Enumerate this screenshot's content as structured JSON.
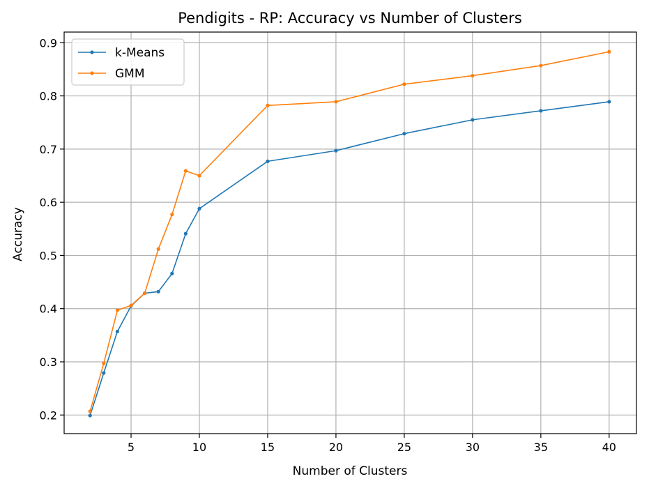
{
  "chart_data": {
    "type": "line",
    "title": "Pendigits - RP: Accuracy vs Number of Clusters",
    "xlabel": "Number of Clusters",
    "ylabel": "Accuracy",
    "xlim": [
      0.1,
      42.0
    ],
    "ylim": [
      0.165,
      0.92
    ],
    "xticks": [
      5,
      10,
      15,
      20,
      25,
      30,
      35,
      40
    ],
    "yticks": [
      0.2,
      0.3,
      0.4,
      0.5,
      0.6,
      0.7,
      0.8,
      0.9
    ],
    "grid": true,
    "legend_position": "top-left",
    "x": [
      2,
      3,
      4,
      5,
      6,
      7,
      8,
      9,
      10,
      15,
      20,
      25,
      30,
      35,
      40
    ],
    "series": [
      {
        "name": "k-Means",
        "color": "#1f77b4",
        "values": [
          0.199,
          0.279,
          0.357,
          0.405,
          0.429,
          0.432,
          0.466,
          0.541,
          0.588,
          0.677,
          0.697,
          0.729,
          0.755,
          0.772,
          0.789
        ]
      },
      {
        "name": "GMM",
        "color": "#ff7f0e",
        "values": [
          0.207,
          0.297,
          0.397,
          0.406,
          0.429,
          0.512,
          0.577,
          0.659,
          0.65,
          0.782,
          0.789,
          0.822,
          0.838,
          0.857,
          0.883
        ]
      }
    ]
  }
}
